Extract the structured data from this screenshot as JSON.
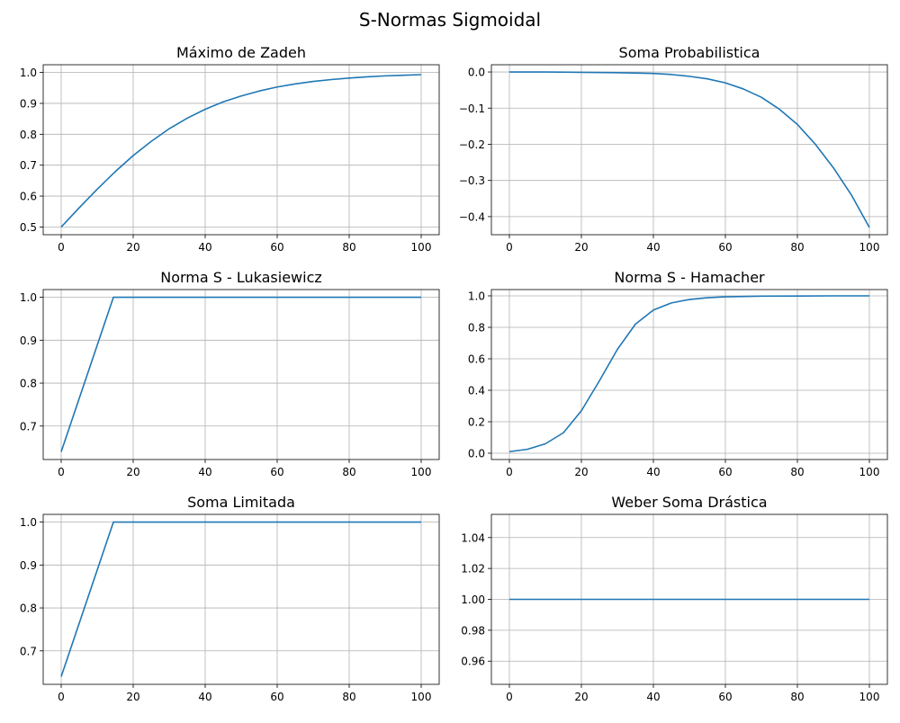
{
  "figure": {
    "title": "S-Normas Sigmoidal",
    "line_color": "#1f77b4",
    "grid_color": "#b0b0b0"
  },
  "chart_data": [
    {
      "type": "line",
      "title": "Máximo de Zadeh",
      "xlabel": "",
      "ylabel": "",
      "grid": true,
      "xlim": [
        -5,
        105
      ],
      "ylim": [
        0.475,
        1.025
      ],
      "x_ticks": [
        0,
        20,
        40,
        60,
        80,
        100
      ],
      "x_tick_labels": [
        "0",
        "20",
        "40",
        "60",
        "80",
        "100"
      ],
      "y_ticks": [
        0.5,
        0.6,
        0.7,
        0.8,
        0.9,
        1.0
      ],
      "y_tick_labels": [
        "0.5",
        "0.6",
        "0.7",
        "0.8",
        "0.9",
        "1.0"
      ],
      "series": [
        {
          "x": [
            0,
            5,
            10,
            15,
            20,
            25,
            30,
            35,
            40,
            45,
            50,
            55,
            60,
            65,
            70,
            75,
            80,
            85,
            90,
            95,
            100
          ],
          "y": [
            0.5,
            0.562,
            0.622,
            0.679,
            0.731,
            0.777,
            0.818,
            0.852,
            0.881,
            0.905,
            0.924,
            0.94,
            0.953,
            0.963,
            0.971,
            0.977,
            0.982,
            0.986,
            0.989,
            0.991,
            0.993
          ]
        }
      ]
    },
    {
      "type": "line",
      "title": "Soma Probabilistica",
      "xlabel": "",
      "ylabel": "",
      "grid": true,
      "xlim": [
        -5,
        105
      ],
      "ylim": [
        -0.45,
        0.02
      ],
      "x_ticks": [
        0,
        20,
        40,
        60,
        80,
        100
      ],
      "x_tick_labels": [
        "0",
        "20",
        "40",
        "60",
        "80",
        "100"
      ],
      "y_ticks": [
        0.0,
        -0.1,
        -0.2,
        -0.3,
        -0.4
      ],
      "y_tick_labels": [
        "0.0",
        "−0.1",
        "−0.2",
        "−0.3",
        "−0.4"
      ],
      "series": [
        {
          "x": [
            0,
            10,
            20,
            30,
            40,
            45,
            50,
            55,
            60,
            65,
            70,
            75,
            80,
            85,
            90,
            95,
            100
          ],
          "y": [
            0.0,
            0.0,
            -0.001,
            -0.002,
            -0.004,
            -0.007,
            -0.012,
            -0.019,
            -0.03,
            -0.047,
            -0.07,
            -0.103,
            -0.145,
            -0.2,
            -0.265,
            -0.34,
            -0.43
          ]
        }
      ]
    },
    {
      "type": "line",
      "title": "Norma S - Lukasiewicz",
      "xlabel": "",
      "ylabel": "",
      "grid": true,
      "xlim": [
        -5,
        105
      ],
      "ylim": [
        0.622,
        1.018
      ],
      "x_ticks": [
        0,
        20,
        40,
        60,
        80,
        100
      ],
      "x_tick_labels": [
        "0",
        "20",
        "40",
        "60",
        "80",
        "100"
      ],
      "y_ticks": [
        0.7,
        0.8,
        0.9,
        1.0
      ],
      "y_tick_labels": [
        "0.7",
        "0.8",
        "0.9",
        "1.0"
      ],
      "series": [
        {
          "x": [
            0,
            14.5,
            20,
            40,
            60,
            80,
            100
          ],
          "y": [
            0.64,
            1.0,
            1.0,
            1.0,
            1.0,
            1.0,
            1.0
          ]
        }
      ]
    },
    {
      "type": "line",
      "title": "Norma S - Hamacher",
      "xlabel": "",
      "ylabel": "",
      "grid": true,
      "xlim": [
        -5,
        105
      ],
      "ylim": [
        -0.04,
        1.04
      ],
      "x_ticks": [
        0,
        20,
        40,
        60,
        80,
        100
      ],
      "x_tick_labels": [
        "0",
        "20",
        "40",
        "60",
        "80",
        "100"
      ],
      "y_ticks": [
        0.0,
        0.2,
        0.4,
        0.6,
        0.8,
        1.0
      ],
      "y_tick_labels": [
        "0.0",
        "0.2",
        "0.4",
        "0.6",
        "0.8",
        "1.0"
      ],
      "series": [
        {
          "x": [
            0,
            5,
            10,
            15,
            20,
            25,
            30,
            35,
            40,
            45,
            50,
            55,
            60,
            70,
            80,
            90,
            100
          ],
          "y": [
            0.01,
            0.025,
            0.06,
            0.13,
            0.27,
            0.46,
            0.66,
            0.82,
            0.91,
            0.955,
            0.977,
            0.988,
            0.994,
            0.998,
            0.999,
            1.0,
            1.0
          ]
        }
      ]
    },
    {
      "type": "line",
      "title": "Soma Limitada",
      "xlabel": "",
      "ylabel": "",
      "grid": true,
      "xlim": [
        -5,
        105
      ],
      "ylim": [
        0.622,
        1.018
      ],
      "x_ticks": [
        0,
        20,
        40,
        60,
        80,
        100
      ],
      "x_tick_labels": [
        "0",
        "20",
        "40",
        "60",
        "80",
        "100"
      ],
      "y_ticks": [
        0.7,
        0.8,
        0.9,
        1.0
      ],
      "y_tick_labels": [
        "0.7",
        "0.8",
        "0.9",
        "1.0"
      ],
      "series": [
        {
          "x": [
            0,
            14.5,
            20,
            40,
            60,
            80,
            100
          ],
          "y": [
            0.64,
            1.0,
            1.0,
            1.0,
            1.0,
            1.0,
            1.0
          ]
        }
      ]
    },
    {
      "type": "line",
      "title": "Weber Soma Drástica",
      "xlabel": "",
      "ylabel": "",
      "grid": true,
      "xlim": [
        -5,
        105
      ],
      "ylim": [
        0.945,
        1.055
      ],
      "x_ticks": [
        0,
        20,
        40,
        60,
        80,
        100
      ],
      "x_tick_labels": [
        "0",
        "20",
        "40",
        "60",
        "80",
        "100"
      ],
      "y_ticks": [
        0.96,
        0.98,
        1.0,
        1.02,
        1.04
      ],
      "y_tick_labels": [
        "0.96",
        "0.98",
        "1.00",
        "1.02",
        "1.04"
      ],
      "series": [
        {
          "x": [
            0,
            20,
            40,
            60,
            80,
            100
          ],
          "y": [
            1.0,
            1.0,
            1.0,
            1.0,
            1.0,
            1.0
          ]
        }
      ]
    }
  ]
}
